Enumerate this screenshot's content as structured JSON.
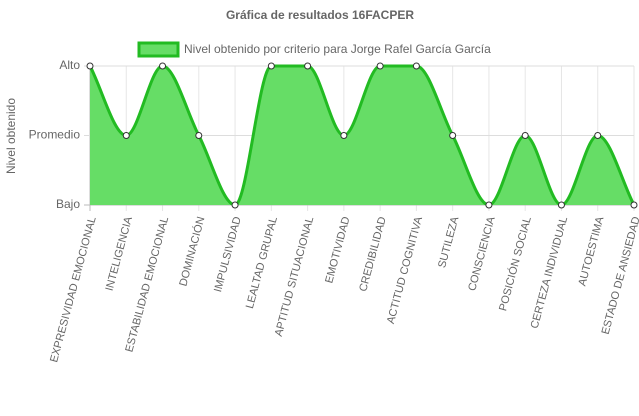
{
  "chart_data": {
    "type": "line",
    "title": "Gráfica de resultados 16FACPER",
    "y_label": "Nivel obtenido",
    "categories": [
      "EXPRESIVIDAD EMOCIONAL",
      "INTELIGENCIA",
      "ESTABILIDAD EMOCIONAL",
      "DOMINACIÓN",
      "IMPULSIVIDAD",
      "LEALTAD GRUPAL",
      "APTITUD SITUACIONAL",
      "EMOTIVIDAD",
      "CREDIBILIDAD",
      "ACTITUD COGNITIVA",
      "SUTILEZA",
      "CONSCIENCIA",
      "POSICIÓN SOCIAL",
      "CERTEZA INDIVIDUAL",
      "AUTOESTIMA",
      "ESTADO DE ANSIEDAD"
    ],
    "series": [
      {
        "name": "Nivel obtenido por criterio para Jorge Rafel García García",
        "color": "#22bb22",
        "fill": "#66dd66",
        "values": [
          2,
          1,
          2,
          1,
          0,
          2,
          2,
          1,
          2,
          2,
          1,
          0,
          1,
          0,
          1,
          0
        ]
      }
    ],
    "ylim": [
      0,
      2
    ],
    "yticks": [
      {
        "value": 0,
        "label": "Bajo"
      },
      {
        "value": 1,
        "label": "Promedio"
      },
      {
        "value": 2,
        "label": "Alto"
      }
    ],
    "grid": true,
    "legend": "top"
  }
}
